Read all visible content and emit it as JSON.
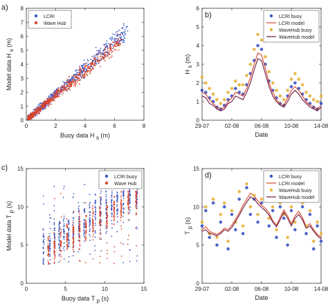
{
  "chart_data": [
    {
      "type": "scatter",
      "panel_label": "a)",
      "xlabel": "Buoy data H",
      "xlabel_sub": "s",
      "xlabel_unit": "(m)",
      "ylabel": "Model data H",
      "ylabel_sub": "s",
      "ylabel_unit": "(m)",
      "xlim": [
        0,
        8
      ],
      "ylim": [
        0,
        8
      ],
      "xticks": [
        0,
        2,
        4,
        6,
        8
      ],
      "yticks": [
        0,
        1,
        2,
        3,
        4,
        5,
        6,
        7,
        8
      ],
      "legend": "top-left",
      "series": [
        {
          "name": "LCRI",
          "color": "#3a55c4",
          "relation": "y ≈ 0.93x, spread ≈ 0.3 m",
          "x_range": [
            0.1,
            6.9
          ]
        },
        {
          "name": "Wave Hub",
          "color": "#d9452b",
          "relation": "y ≈ 0.88x, spread ≈ 0.25 m",
          "x_range": [
            0.1,
            6.5
          ]
        }
      ]
    },
    {
      "type": "line",
      "panel_label": "b)",
      "xlabel": "Date",
      "ylabel": "H",
      "ylabel_sub": "s",
      "ylabel_unit": "(m)",
      "xlim_days": [
        0,
        16
      ],
      "ylim": [
        0,
        6
      ],
      "yticks": [
        0,
        1,
        2,
        3,
        4,
        5,
        6
      ],
      "xtick_labels": [
        "29-07",
        "02-08",
        "06-08",
        "10-08",
        "14-08"
      ],
      "legend": "top-right",
      "x": [
        0,
        0.5,
        1,
        1.5,
        2,
        2.5,
        3,
        3.5,
        4,
        4.5,
        5,
        5.5,
        6,
        6.5,
        7,
        7.5,
        8,
        8.5,
        9,
        9.5,
        10,
        10.5,
        11,
        11.5,
        12,
        12.5,
        13,
        13.5,
        14,
        14.5,
        15,
        15.5,
        16
      ],
      "series": [
        {
          "name": "LCRI buoy",
          "style": "markers",
          "color": "#3a55c4",
          "values": [
            1.6,
            1.5,
            1.2,
            1.0,
            0.7,
            0.6,
            0.8,
            1.1,
            1.3,
            1.7,
            1.5,
            1.4,
            1.9,
            2.5,
            3.2,
            4.0,
            3.8,
            3.0,
            2.1,
            1.6,
            1.2,
            0.9,
            0.8,
            1.3,
            1.8,
            2.0,
            1.7,
            1.4,
            1.1,
            0.9,
            0.7,
            0.6,
            0.9
          ]
        },
        {
          "name": "LCRI model",
          "style": "line",
          "color": "#d9452b",
          "values": [
            1.5,
            1.4,
            1.1,
            0.9,
            0.7,
            0.6,
            0.7,
            1.0,
            1.2,
            1.5,
            1.4,
            1.3,
            1.7,
            2.3,
            3.0,
            3.6,
            3.5,
            2.8,
            2.0,
            1.5,
            1.1,
            0.9,
            0.8,
            1.2,
            1.6,
            1.8,
            1.6,
            1.3,
            1.0,
            0.8,
            0.7,
            0.6,
            0.8
          ]
        },
        {
          "name": "WaveHub buoy",
          "style": "markers",
          "color": "#e8b13c",
          "values": [
            2.3,
            2.0,
            1.7,
            1.4,
            1.1,
            0.9,
            1.1,
            1.5,
            1.7,
            2.1,
            1.9,
            1.9,
            2.4,
            3.0,
            3.8,
            4.6,
            4.3,
            3.4,
            2.6,
            2.0,
            1.6,
            1.3,
            1.1,
            1.6,
            2.2,
            2.5,
            2.2,
            1.9,
            1.5,
            1.3,
            1.1,
            1.0,
            1.3
          ]
        },
        {
          "name": "WaveHub model",
          "style": "line",
          "color": "#6b1640",
          "values": [
            1.3,
            1.2,
            0.9,
            0.8,
            0.6,
            0.5,
            0.6,
            0.9,
            1.0,
            1.3,
            1.2,
            1.1,
            1.5,
            2.0,
            2.7,
            3.3,
            3.2,
            2.5,
            1.8,
            1.3,
            1.0,
            0.8,
            0.7,
            1.0,
            1.4,
            1.6,
            1.4,
            1.1,
            0.9,
            0.7,
            0.6,
            0.5,
            0.7
          ]
        }
      ]
    },
    {
      "type": "scatter",
      "panel_label": "c)",
      "xlabel": "Buoy data T",
      "xlabel_sub": "p",
      "xlabel_unit": "(s)",
      "ylabel": "Model data T",
      "ylabel_sub": "p",
      "ylabel_unit": "(s)",
      "xlim": [
        0,
        15
      ],
      "ylim": [
        0,
        15
      ],
      "xticks": [
        0,
        5,
        10,
        15
      ],
      "yticks": [
        0,
        5,
        10,
        15
      ],
      "legend": "top-right",
      "series": [
        {
          "name": "LCRI buoy",
          "color": "#3a55c4",
          "x_columns": [
            2.2,
            3.0,
            3.6,
            4.2,
            4.8,
            5.4,
            6.0,
            6.7,
            7.4,
            8.1,
            8.8,
            9.5,
            10.2,
            10.9,
            11.6,
            12.4,
            13.2,
            14.1
          ],
          "y_range": [
            2.5,
            13.0
          ]
        },
        {
          "name": "Wave Hub",
          "color": "#d9452b",
          "x_columns": [
            2.8,
            3.6,
            4.4,
            5.2,
            6.0,
            6.8,
            7.6,
            8.5,
            9.4,
            10.3,
            11.2,
            12.1,
            13.0,
            14.0
          ],
          "y_range": [
            2.5,
            12.0
          ]
        }
      ]
    },
    {
      "type": "line",
      "panel_label": "d)",
      "xlabel": "Date",
      "ylabel": "T",
      "ylabel_sub": "p",
      "ylabel_unit": "(s)",
      "xlim_days": [
        0,
        16
      ],
      "ylim": [
        0,
        15
      ],
      "yticks": [
        0,
        5,
        10,
        15
      ],
      "xtick_labels": [
        "29-07",
        "02-08",
        "06-08",
        "10-08",
        "14-08"
      ],
      "legend": "top-right",
      "x": [
        0,
        0.5,
        1,
        1.5,
        2,
        2.5,
        3,
        3.5,
        4,
        4.5,
        5,
        5.5,
        6,
        6.5,
        7,
        7.5,
        8,
        8.5,
        9,
        9.5,
        10,
        10.5,
        11,
        11.5,
        12,
        12.5,
        13,
        13.5,
        14,
        14.5,
        15,
        15.5,
        16
      ],
      "series": [
        {
          "name": "LCRI buoy",
          "style": "markers",
          "color": "#3a55c4",
          "values": [
            7.5,
            9.5,
            6.0,
            10.5,
            5.0,
            8.0,
            10.0,
            4.5,
            9.0,
            7.0,
            11.0,
            6.5,
            12.5,
            9.0,
            11.0,
            8.0,
            10.5,
            12.0,
            7.5,
            9.5,
            6.0,
            10.0,
            8.5,
            5.0,
            9.5,
            7.0,
            11.0,
            10.0,
            6.5,
            9.0,
            4.5,
            7.5,
            5.5
          ]
        },
        {
          "name": "LCRI model",
          "style": "line",
          "color": "#d9452b",
          "values": [
            7.0,
            7.4,
            6.8,
            6.6,
            6.4,
            6.7,
            7.2,
            7.0,
            7.6,
            8.4,
            9.2,
            10.2,
            11.0,
            11.8,
            11.4,
            10.8,
            10.2,
            9.8,
            9.2,
            8.2,
            7.6,
            8.6,
            9.6,
            8.8,
            7.8,
            8.8,
            9.4,
            8.6,
            7.4,
            7.8,
            7.0,
            6.4,
            6.0
          ]
        },
        {
          "name": "WaveHub buoy",
          "style": "markers",
          "color": "#e8b13c",
          "values": [
            8.0,
            10.0,
            6.5,
            11.0,
            6.0,
            9.0,
            10.5,
            5.5,
            9.5,
            8.0,
            12.0,
            7.5,
            13.0,
            10.0,
            11.5,
            9.0,
            11.0,
            12.5,
            8.5,
            10.0,
            7.0,
            10.5,
            9.0,
            6.0,
            10.0,
            8.0,
            11.5,
            10.5,
            7.5,
            9.5,
            5.5,
            8.0,
            6.5
          ]
        },
        {
          "name": "WaveHub model",
          "style": "line",
          "color": "#6b1640",
          "values": [
            6.8,
            7.0,
            6.5,
            6.4,
            6.2,
            6.5,
            7.0,
            6.8,
            7.3,
            8.1,
            8.9,
            9.8,
            10.6,
            11.3,
            11.0,
            10.4,
            9.9,
            9.5,
            8.9,
            8.0,
            7.4,
            8.3,
            9.3,
            8.5,
            7.5,
            8.5,
            9.0,
            8.3,
            7.2,
            7.5,
            6.8,
            6.2,
            5.8
          ]
        }
      ]
    }
  ]
}
